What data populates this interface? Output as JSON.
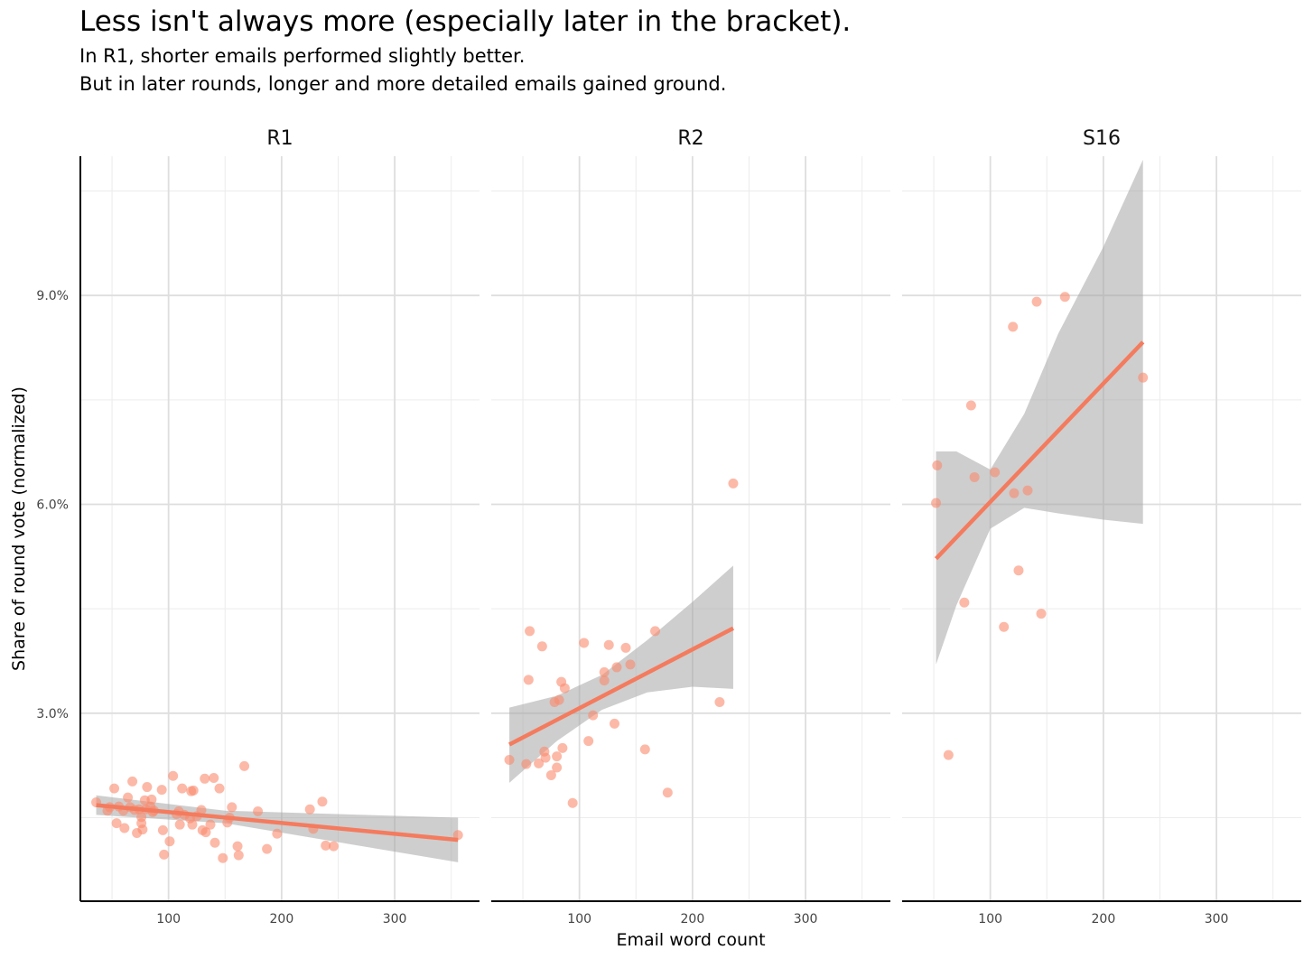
{
  "chart_data": {
    "type": "scatter",
    "title": "Less isn't always more (especially later in the bracket).",
    "subtitle_lines": [
      "In R1, shorter emails performed slightly better.",
      "But in later rounds, longer and more detailed emails gained ground."
    ],
    "xlabel": "Email word count",
    "ylabel": "Share of round vote (normalized)",
    "xlim": [
      22,
      375
    ],
    "ylim": [
      0.3,
      11.0
    ],
    "x_ticks": [
      100,
      200,
      300
    ],
    "x_tick_labels": [
      "100",
      "200",
      "300"
    ],
    "y_ticks": [
      3.0,
      6.0,
      9.0
    ],
    "y_tick_labels": [
      "3.0%",
      "6.0%",
      "9.0%"
    ],
    "grid": true,
    "legend": "none",
    "point_color": "#FA8A6E",
    "line_color": "#F47B5E",
    "band_color": "#A6A6A6",
    "panels": [
      {
        "name": "R1",
        "points": [
          {
            "x": 36,
            "y": 1.72
          },
          {
            "x": 46,
            "y": 1.6
          },
          {
            "x": 48,
            "y": 1.65
          },
          {
            "x": 52,
            "y": 1.92
          },
          {
            "x": 54,
            "y": 1.42
          },
          {
            "x": 56,
            "y": 1.66
          },
          {
            "x": 60,
            "y": 1.6
          },
          {
            "x": 61,
            "y": 1.35
          },
          {
            "x": 64,
            "y": 1.79
          },
          {
            "x": 66,
            "y": 1.65
          },
          {
            "x": 68,
            "y": 2.02
          },
          {
            "x": 70,
            "y": 1.61
          },
          {
            "x": 72,
            "y": 1.28
          },
          {
            "x": 74,
            "y": 1.62
          },
          {
            "x": 76,
            "y": 1.42
          },
          {
            "x": 76,
            "y": 1.51
          },
          {
            "x": 77,
            "y": 1.33
          },
          {
            "x": 79,
            "y": 1.75
          },
          {
            "x": 80,
            "y": 1.62
          },
          {
            "x": 81,
            "y": 1.94
          },
          {
            "x": 84,
            "y": 1.66
          },
          {
            "x": 85,
            "y": 1.76
          },
          {
            "x": 86,
            "y": 1.58
          },
          {
            "x": 87,
            "y": 1.6
          },
          {
            "x": 94,
            "y": 1.9
          },
          {
            "x": 95,
            "y": 1.32
          },
          {
            "x": 96,
            "y": 0.97
          },
          {
            "x": 101,
            "y": 1.16
          },
          {
            "x": 104,
            "y": 2.1
          },
          {
            "x": 107,
            "y": 1.55
          },
          {
            "x": 109,
            "y": 1.59
          },
          {
            "x": 110,
            "y": 1.4
          },
          {
            "x": 112,
            "y": 1.92
          },
          {
            "x": 114,
            "y": 1.54
          },
          {
            "x": 119,
            "y": 1.49
          },
          {
            "x": 120,
            "y": 1.88
          },
          {
            "x": 121,
            "y": 1.4
          },
          {
            "x": 122,
            "y": 1.89
          },
          {
            "x": 125,
            "y": 1.52
          },
          {
            "x": 129,
            "y": 1.61
          },
          {
            "x": 130,
            "y": 1.32
          },
          {
            "x": 132,
            "y": 2.06
          },
          {
            "x": 133,
            "y": 1.29
          },
          {
            "x": 137,
            "y": 1.4
          },
          {
            "x": 140,
            "y": 2.07
          },
          {
            "x": 141,
            "y": 1.14
          },
          {
            "x": 145,
            "y": 1.92
          },
          {
            "x": 148,
            "y": 0.92
          },
          {
            "x": 152,
            "y": 1.43
          },
          {
            "x": 154,
            "y": 1.5
          },
          {
            "x": 156,
            "y": 1.65
          },
          {
            "x": 161,
            "y": 1.09
          },
          {
            "x": 162,
            "y": 0.96
          },
          {
            "x": 167,
            "y": 2.24
          },
          {
            "x": 179,
            "y": 1.59
          },
          {
            "x": 187,
            "y": 1.05
          },
          {
            "x": 196,
            "y": 1.27
          },
          {
            "x": 225,
            "y": 1.62
          },
          {
            "x": 228,
            "y": 1.34
          },
          {
            "x": 236,
            "y": 1.73
          },
          {
            "x": 239,
            "y": 1.1
          },
          {
            "x": 246,
            "y": 1.09
          },
          {
            "x": 356,
            "y": 1.25
          }
        ],
        "fit": {
          "x": [
            36,
            356
          ],
          "y": [
            1.68,
            1.18
          ]
        },
        "band": {
          "x": [
            36,
            150,
            356
          ],
          "upper": [
            1.82,
            1.6,
            1.5
          ],
          "lower": [
            1.54,
            1.42,
            0.86
          ]
        }
      },
      {
        "name": "R2",
        "points": [
          {
            "x": 38,
            "y": 2.33
          },
          {
            "x": 53,
            "y": 2.27
          },
          {
            "x": 55,
            "y": 3.48
          },
          {
            "x": 56,
            "y": 4.18
          },
          {
            "x": 64,
            "y": 2.28
          },
          {
            "x": 67,
            "y": 3.96
          },
          {
            "x": 69,
            "y": 2.45
          },
          {
            "x": 70,
            "y": 2.36
          },
          {
            "x": 75,
            "y": 2.11
          },
          {
            "x": 78,
            "y": 3.16
          },
          {
            "x": 80,
            "y": 2.38
          },
          {
            "x": 80,
            "y": 2.22
          },
          {
            "x": 82,
            "y": 3.19
          },
          {
            "x": 84,
            "y": 3.45
          },
          {
            "x": 85,
            "y": 2.5
          },
          {
            "x": 87,
            "y": 3.36
          },
          {
            "x": 94,
            "y": 1.71
          },
          {
            "x": 104,
            "y": 4.01
          },
          {
            "x": 108,
            "y": 2.6
          },
          {
            "x": 112,
            "y": 2.97
          },
          {
            "x": 122,
            "y": 3.59
          },
          {
            "x": 122,
            "y": 3.47
          },
          {
            "x": 126,
            "y": 3.98
          },
          {
            "x": 131,
            "y": 2.85
          },
          {
            "x": 133,
            "y": 3.66
          },
          {
            "x": 141,
            "y": 3.94
          },
          {
            "x": 145,
            "y": 3.7
          },
          {
            "x": 158,
            "y": 2.48
          },
          {
            "x": 167,
            "y": 4.18
          },
          {
            "x": 178,
            "y": 1.86
          },
          {
            "x": 224,
            "y": 3.16
          },
          {
            "x": 236,
            "y": 6.3
          }
        ],
        "fit": {
          "x": [
            38,
            236
          ],
          "y": [
            2.55,
            4.22
          ]
        },
        "band": {
          "x": [
            38,
            80,
            120,
            160,
            200,
            236
          ],
          "upper": [
            3.08,
            3.25,
            3.55,
            4.05,
            4.6,
            5.12
          ],
          "lower": [
            2.0,
            2.6,
            3.05,
            3.3,
            3.38,
            3.35
          ]
        }
      },
      {
        "name": "S16",
        "points": [
          {
            "x": 52,
            "y": 6.02
          },
          {
            "x": 53,
            "y": 6.56
          },
          {
            "x": 63,
            "y": 2.4
          },
          {
            "x": 77,
            "y": 4.59
          },
          {
            "x": 83,
            "y": 7.42
          },
          {
            "x": 86,
            "y": 6.39
          },
          {
            "x": 104,
            "y": 6.46
          },
          {
            "x": 112,
            "y": 4.24
          },
          {
            "x": 120,
            "y": 8.55
          },
          {
            "x": 121,
            "y": 6.16
          },
          {
            "x": 125,
            "y": 5.05
          },
          {
            "x": 133,
            "y": 6.2
          },
          {
            "x": 141,
            "y": 8.91
          },
          {
            "x": 145,
            "y": 4.43
          },
          {
            "x": 166,
            "y": 8.98
          },
          {
            "x": 235,
            "y": 7.82
          }
        ],
        "fit": {
          "x": [
            52,
            235
          ],
          "y": [
            5.22,
            8.33
          ]
        },
        "band": {
          "x": [
            52,
            70,
            100,
            130,
            160,
            200,
            235
          ],
          "upper": [
            6.76,
            6.76,
            6.5,
            7.3,
            8.45,
            9.7,
            10.95
          ],
          "lower": [
            3.7,
            4.55,
            5.65,
            5.95,
            5.87,
            5.78,
            5.72
          ]
        }
      }
    ]
  }
}
